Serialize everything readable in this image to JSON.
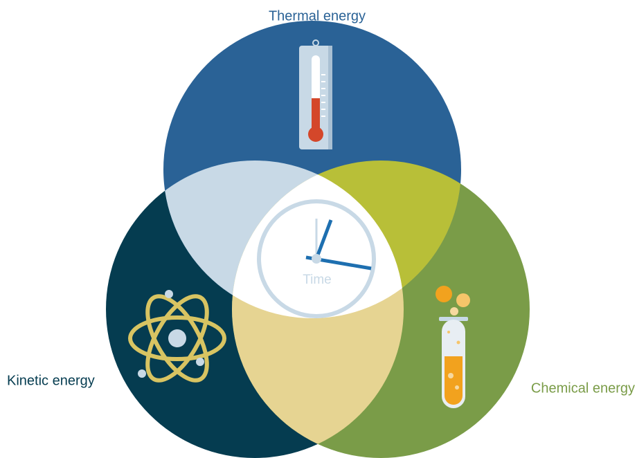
{
  "sets": [
    {
      "label": "Thermal energy"
    },
    {
      "label": "Kinetic energy"
    },
    {
      "label": "Chemical energy"
    }
  ],
  "center": {
    "label": "Time"
  }
}
